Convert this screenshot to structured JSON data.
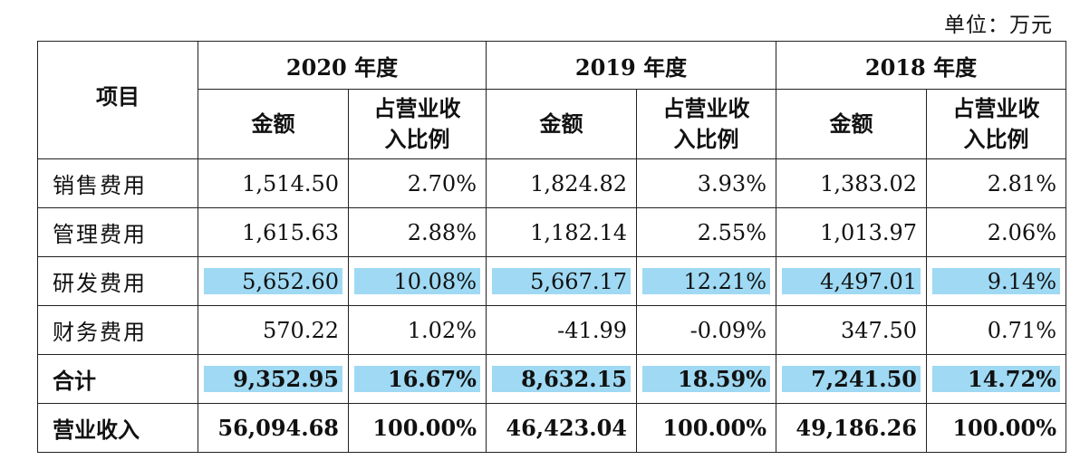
{
  "unit_label": "单位：万元",
  "header": {
    "item": "项目",
    "years": [
      "2020 年度",
      "2019 年度",
      "2018 年度"
    ],
    "amount": "金额",
    "ratio_line1": "占营业收",
    "ratio_line2": "入比例"
  },
  "rows": [
    {
      "label": "销售费用",
      "values": [
        "1,514.50",
        "2.70%",
        "1,824.82",
        "3.93%",
        "1,383.02",
        "2.81%"
      ]
    },
    {
      "label": "管理费用",
      "values": [
        "1,615.63",
        "2.88%",
        "1,182.14",
        "2.55%",
        "1,013.97",
        "2.06%"
      ]
    },
    {
      "label": "研发费用",
      "values": [
        "5,652.60",
        "10.08%",
        "5,667.17",
        "12.21%",
        "4,497.01",
        "9.14%"
      ]
    },
    {
      "label": "财务费用",
      "values": [
        "570.22",
        "1.02%",
        "-41.99",
        "-0.09%",
        "347.50",
        "0.71%"
      ]
    },
    {
      "label": "合计",
      "values": [
        "9,352.95",
        "16.67%",
        "8,632.15",
        "18.59%",
        "7,241.50",
        "14.72%"
      ]
    },
    {
      "label": "营业收入",
      "values": [
        "56,094.68",
        "100.00%",
        "46,423.04",
        "100.00%",
        "49,186.26",
        "100.00%"
      ]
    }
  ],
  "highlight_color": "#9fd9f3"
}
